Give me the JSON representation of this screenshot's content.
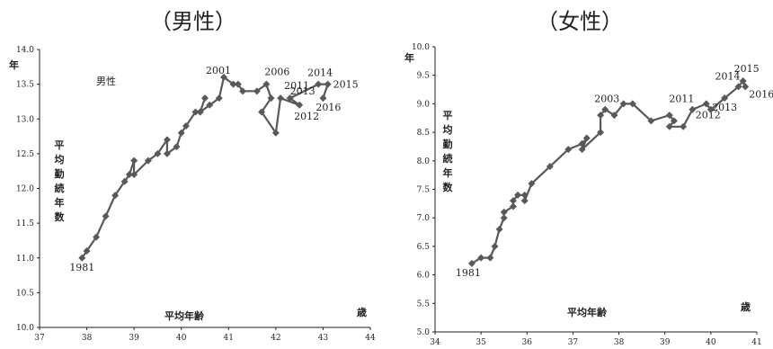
{
  "chart_data": [
    {
      "type": "line",
      "panel_title": "（男性）",
      "series_name": "男性",
      "xlabel": "平均年齢",
      "xunit": "歳",
      "ylabel": "平均勤続年数",
      "yunit": "年",
      "xlim": [
        37,
        44
      ],
      "ylim": [
        10.0,
        14.0
      ],
      "xticks": [
        "37",
        "38",
        "39",
        "40",
        "41",
        "42",
        "43",
        "44"
      ],
      "yticks": [
        "10.0",
        "10.5",
        "11.0",
        "11.5",
        "12.0",
        "12.5",
        "13.0",
        "13.5",
        "14.0"
      ],
      "points": [
        {
          "x": 37.9,
          "y": 11.0,
          "label": "1981"
        },
        {
          "x": 38.0,
          "y": 11.1,
          "label": ""
        },
        {
          "x": 38.2,
          "y": 11.3,
          "label": ""
        },
        {
          "x": 38.4,
          "y": 11.6,
          "label": ""
        },
        {
          "x": 38.6,
          "y": 11.9,
          "label": ""
        },
        {
          "x": 38.8,
          "y": 12.1,
          "label": ""
        },
        {
          "x": 38.9,
          "y": 12.2,
          "label": ""
        },
        {
          "x": 39.0,
          "y": 12.4,
          "label": ""
        },
        {
          "x": 39.0,
          "y": 12.2,
          "label": ""
        },
        {
          "x": 39.3,
          "y": 12.4,
          "label": ""
        },
        {
          "x": 39.5,
          "y": 12.5,
          "label": ""
        },
        {
          "x": 39.7,
          "y": 12.7,
          "label": ""
        },
        {
          "x": 39.7,
          "y": 12.5,
          "label": ""
        },
        {
          "x": 39.9,
          "y": 12.6,
          "label": ""
        },
        {
          "x": 40.0,
          "y": 12.8,
          "label": ""
        },
        {
          "x": 40.1,
          "y": 12.9,
          "label": ""
        },
        {
          "x": 40.3,
          "y": 13.1,
          "label": ""
        },
        {
          "x": 40.4,
          "y": 13.1,
          "label": ""
        },
        {
          "x": 40.5,
          "y": 13.3,
          "label": ""
        },
        {
          "x": 40.4,
          "y": 13.1,
          "label": ""
        },
        {
          "x": 40.6,
          "y": 13.2,
          "label": ""
        },
        {
          "x": 40.8,
          "y": 13.3,
          "label": ""
        },
        {
          "x": 40.9,
          "y": 13.6,
          "label": "2001"
        },
        {
          "x": 41.1,
          "y": 13.5,
          "label": ""
        },
        {
          "x": 41.2,
          "y": 13.5,
          "label": ""
        },
        {
          "x": 41.3,
          "y": 13.4,
          "label": ""
        },
        {
          "x": 41.6,
          "y": 13.4,
          "label": ""
        },
        {
          "x": 41.8,
          "y": 13.5,
          "label": "2006"
        },
        {
          "x": 41.9,
          "y": 13.3,
          "label": ""
        },
        {
          "x": 41.7,
          "y": 13.1,
          "label": ""
        },
        {
          "x": 42.0,
          "y": 12.8,
          "label": ""
        },
        {
          "x": 42.1,
          "y": 13.3,
          "label": "2011"
        },
        {
          "x": 42.5,
          "y": 13.2,
          "label": "2012"
        },
        {
          "x": 42.3,
          "y": 13.3,
          "label": "2013"
        },
        {
          "x": 42.9,
          "y": 13.5,
          "label": "2014"
        },
        {
          "x": 43.1,
          "y": 13.5,
          "label": "2015"
        },
        {
          "x": 43.0,
          "y": 13.3,
          "label": "2016"
        }
      ]
    },
    {
      "type": "line",
      "panel_title": "（女性）",
      "series_name": "",
      "xlabel": "平均年齢",
      "xunit": "歳",
      "ylabel": "平均勤続年数",
      "yunit": "年",
      "xlim": [
        34,
        41
      ],
      "ylim": [
        5.0,
        10.0
      ],
      "xticks": [
        "34",
        "35",
        "36",
        "37",
        "38",
        "39",
        "40",
        "41"
      ],
      "yticks": [
        "5.0",
        "5.5",
        "6.0",
        "6.5",
        "7.0",
        "7.5",
        "8.0",
        "8.5",
        "9.0",
        "9.5",
        "10.0"
      ],
      "points": [
        {
          "x": 34.8,
          "y": 6.2,
          "label": "1981"
        },
        {
          "x": 35.0,
          "y": 6.3,
          "label": ""
        },
        {
          "x": 35.2,
          "y": 6.3,
          "label": ""
        },
        {
          "x": 35.3,
          "y": 6.5,
          "label": ""
        },
        {
          "x": 35.4,
          "y": 6.8,
          "label": ""
        },
        {
          "x": 35.5,
          "y": 7.0,
          "label": ""
        },
        {
          "x": 35.5,
          "y": 7.1,
          "label": ""
        },
        {
          "x": 35.7,
          "y": 7.2,
          "label": ""
        },
        {
          "x": 35.7,
          "y": 7.3,
          "label": ""
        },
        {
          "x": 35.8,
          "y": 7.4,
          "label": ""
        },
        {
          "x": 35.95,
          "y": 7.4,
          "label": ""
        },
        {
          "x": 35.95,
          "y": 7.3,
          "label": ""
        },
        {
          "x": 36.1,
          "y": 7.6,
          "label": ""
        },
        {
          "x": 36.5,
          "y": 7.9,
          "label": ""
        },
        {
          "x": 36.9,
          "y": 8.2,
          "label": ""
        },
        {
          "x": 37.2,
          "y": 8.3,
          "label": ""
        },
        {
          "x": 37.3,
          "y": 8.4,
          "label": ""
        },
        {
          "x": 37.2,
          "y": 8.2,
          "label": ""
        },
        {
          "x": 37.6,
          "y": 8.5,
          "label": ""
        },
        {
          "x": 37.6,
          "y": 8.8,
          "label": ""
        },
        {
          "x": 37.7,
          "y": 8.9,
          "label": "2003"
        },
        {
          "x": 37.9,
          "y": 8.8,
          "label": ""
        },
        {
          "x": 38.1,
          "y": 9.0,
          "label": ""
        },
        {
          "x": 38.3,
          "y": 9.0,
          "label": ""
        },
        {
          "x": 38.7,
          "y": 8.7,
          "label": ""
        },
        {
          "x": 39.1,
          "y": 8.8,
          "label": ""
        },
        {
          "x": 39.2,
          "y": 8.7,
          "label": ""
        },
        {
          "x": 39.1,
          "y": 8.6,
          "label": ""
        },
        {
          "x": 39.4,
          "y": 8.6,
          "label": ""
        },
        {
          "x": 39.6,
          "y": 8.9,
          "label": "2011"
        },
        {
          "x": 39.9,
          "y": 9.0,
          "label": "2012"
        },
        {
          "x": 40.0,
          "y": 8.9,
          "label": ""
        },
        {
          "x": 40.3,
          "y": 9.1,
          "label": "2013"
        },
        {
          "x": 40.6,
          "y": 9.3,
          "label": "2014"
        },
        {
          "x": 40.7,
          "y": 9.4,
          "label": "2015"
        },
        {
          "x": 40.75,
          "y": 9.3,
          "label": "2016"
        }
      ]
    }
  ]
}
